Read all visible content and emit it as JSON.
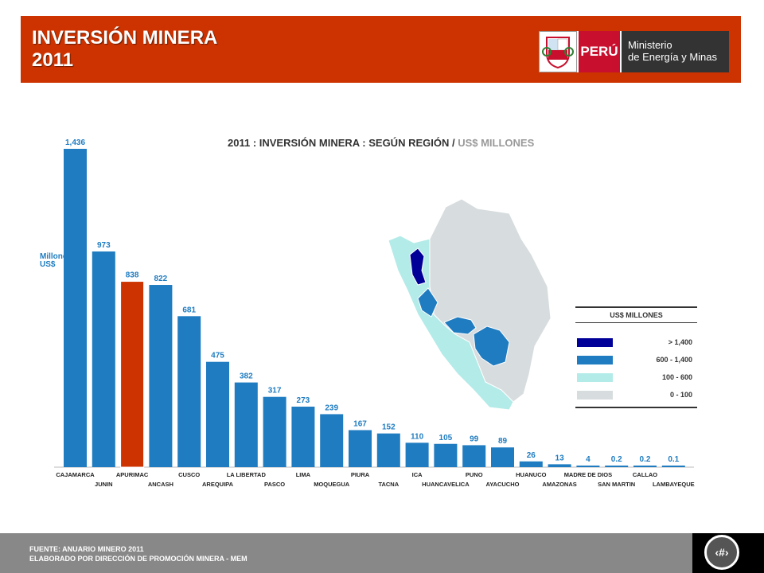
{
  "header": {
    "title": "INVERSIÓN MINERA\n2011",
    "logo_country": "PERÚ",
    "logo_ministry": "Ministerio\nde Energía y Minas"
  },
  "chart_data": {
    "type": "bar",
    "title": "2011 : INVERSIÓN MINERA : SEGÚN REGIÓN /",
    "title_units": "US$ MILLONES",
    "ylabel": "Millones US$",
    "categories": [
      "CAJAMARCA",
      "JUNIN",
      "APURIMAC",
      "ANCASH",
      "CUSCO",
      "AREQUIPA",
      "LA LIBERTAD",
      "PASCO",
      "LIMA",
      "MOQUEGUA",
      "PIURA",
      "TACNA",
      "ICA",
      "HUANCAVELICA",
      "PUNO",
      "AYACUCHO",
      "HUANUCO",
      "AMAZONAS",
      "MADRE DE DIOS",
      "SAN MARTIN",
      "CALLAO",
      "LAMBAYEQUE"
    ],
    "values": [
      1436,
      973,
      838,
      822,
      681,
      475,
      382,
      317,
      273,
      239,
      167,
      152,
      110,
      105,
      99,
      89,
      26,
      13,
      4,
      0.2,
      0.2,
      0.1
    ],
    "value_labels": [
      "1,436",
      "973",
      "838",
      "822",
      "681",
      "475",
      "382",
      "317",
      "273",
      "239",
      "167",
      "152",
      "110",
      "105",
      "99",
      "89",
      "26",
      "13",
      "4",
      "0.2",
      "0.2",
      "0.1"
    ],
    "highlight_index": 2,
    "colors": {
      "bar": "#1f7cc1",
      "highlight": "#cc3300"
    }
  },
  "map_legend": {
    "title": "US$ MILLONES",
    "items": [
      {
        "label": "> 1,400",
        "color": "#000099"
      },
      {
        "label": "600 - 1,400",
        "color": "#1f7cc1"
      },
      {
        "label": "100 - 600",
        "color": "#b3ebe8"
      },
      {
        "label": "0 - 100",
        "color": "#d7dcde"
      }
    ]
  },
  "footer": {
    "line1": "FUENTE: ANUARIO MINERO 2011",
    "line2": "ELABORADO POR DIRECCIÓN DE PROMOCIÓN MINERA  - MEM",
    "page_number": "‹#›"
  }
}
